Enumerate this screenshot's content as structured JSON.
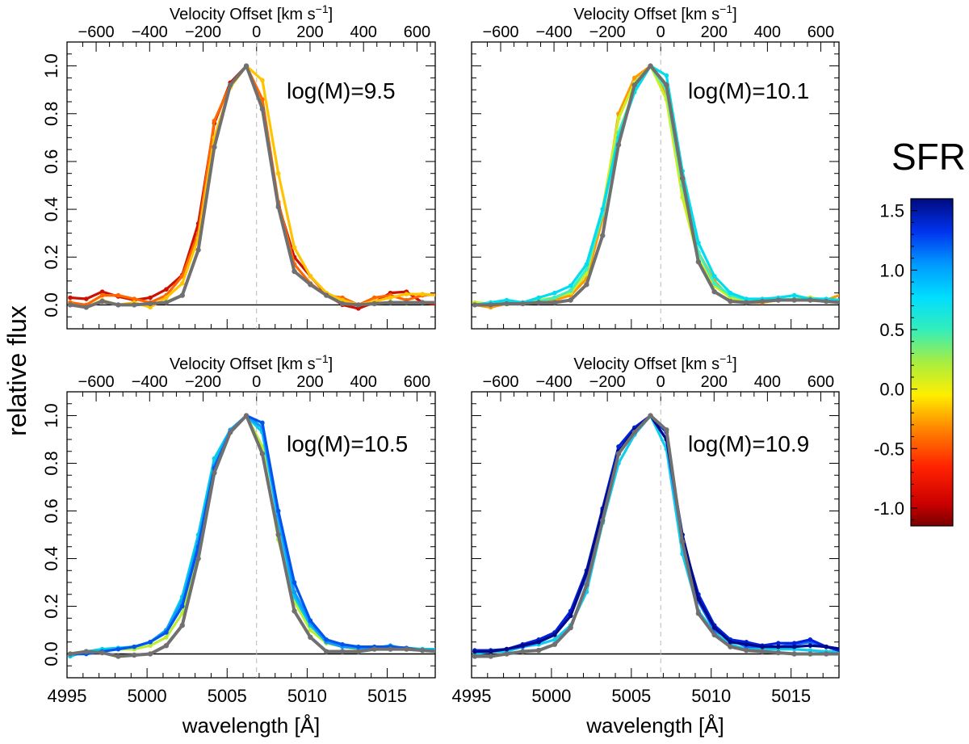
{
  "chart_data": {
    "type": "line",
    "figure": {
      "ylabel": "relative flux",
      "xlabel": "wavelength [Å]",
      "top_xlabel_main": "Velocity Offset [km s",
      "top_xlabel_sup": "−1",
      "top_xlabel_end": "]",
      "colorbar_title": "SFR",
      "colorbar_range": [
        -1.15,
        1.6
      ],
      "colorbar_ticks": [
        -1.0,
        -0.5,
        0.0,
        0.5,
        1.0,
        1.5
      ],
      "colorbar_tick_labels": [
        "-1.0",
        "-0.5",
        "0.0",
        "0.5",
        "1.0",
        "1.5"
      ]
    },
    "axes": {
      "xlim": [
        4995,
        5018
      ],
      "ylim": [
        -0.1,
        1.1
      ],
      "xticks": [
        4995,
        5000,
        5005,
        5010,
        5015
      ],
      "yticks": [
        0.0,
        0.2,
        0.4,
        0.6,
        0.8,
        1.0
      ],
      "ytick_labels": [
        "0.0",
        "0.2",
        "0.4",
        "0.6",
        "0.8",
        "1.0"
      ],
      "rest_wavelength": 5006.84,
      "top_ticks_kms": [
        -600,
        -400,
        -200,
        0,
        200,
        400,
        600
      ],
      "zero_line": 0.0
    },
    "x": [
      4995.2,
      4996.2,
      4997.2,
      4998.2,
      4999.2,
      5000.2,
      5001.2,
      5002.2,
      5003.2,
      5004.2,
      5005.2,
      5006.2,
      5007.2,
      5008.2,
      5009.2,
      5010.2,
      5011.2,
      5012.2,
      5013.2,
      5014.2,
      5015.2,
      5016.2,
      5017.2,
      5018.2
    ],
    "panels": [
      {
        "label": "log(M)=9.5",
        "series": [
          {
            "name": "SFR -1.0",
            "color": "#cc1100",
            "values": [
              0.03,
              0.025,
              0.055,
              0.035,
              0.02,
              0.03,
              0.065,
              0.125,
              0.34,
              0.76,
              0.93,
              1.0,
              0.82,
              0.42,
              0.2,
              0.12,
              0.045,
              0.0,
              -0.015,
              0.01,
              0.05,
              0.055,
              0.01,
              0.0
            ]
          },
          {
            "name": "SFR -0.5",
            "color": "#ff6600",
            "values": [
              0.01,
              0.0,
              0.04,
              0.04,
              0.025,
              0.01,
              0.04,
              0.12,
              0.3,
              0.77,
              0.92,
              1.0,
              0.86,
              0.43,
              0.17,
              0.09,
              0.04,
              0.03,
              0.0,
              0.03,
              0.04,
              0.02,
              0.04,
              0.045
            ]
          },
          {
            "name": "SFR -0.2",
            "color": "#ffc400",
            "values": [
              0.0,
              -0.01,
              0.02,
              0.0,
              0.01,
              -0.01,
              0.03,
              0.09,
              0.28,
              0.7,
              0.91,
              1.0,
              0.94,
              0.55,
              0.24,
              0.12,
              0.05,
              0.02,
              0.0,
              0.015,
              0.03,
              0.045,
              0.045,
              0.04
            ]
          },
          {
            "name": "average",
            "color": "#707070",
            "values": [
              0.0,
              -0.01,
              0.015,
              0.0,
              0.0,
              0.005,
              0.01,
              0.04,
              0.23,
              0.66,
              0.92,
              1.0,
              0.82,
              0.41,
              0.14,
              0.085,
              0.04,
              0.005,
              0.0,
              0.005,
              0.01,
              0.01,
              0.01,
              0.01
            ]
          }
        ]
      },
      {
        "label": "log(M)=10.1",
        "series": [
          {
            "name": "SFR -0.3",
            "color": "#ff9900",
            "values": [
              0.0,
              -0.01,
              0.005,
              0.005,
              0.01,
              0.02,
              0.04,
              0.11,
              0.36,
              0.8,
              0.95,
              1.0,
              0.88,
              0.48,
              0.22,
              0.1,
              0.03,
              0.01,
              0.01,
              0.02,
              0.02,
              0.03,
              0.02,
              0.045
            ]
          },
          {
            "name": "SFR 0.0",
            "color": "#ccee22",
            "values": [
              0.01,
              0.005,
              0.015,
              0.01,
              0.02,
              0.03,
              0.05,
              0.13,
              0.4,
              0.78,
              0.93,
              1.0,
              0.86,
              0.45,
              0.19,
              0.08,
              0.03,
              0.015,
              0.015,
              0.02,
              0.025,
              0.03,
              0.02,
              0.02
            ]
          },
          {
            "name": "SFR 0.3",
            "color": "#44eebb",
            "values": [
              0.0,
              0.0,
              0.01,
              0.01,
              0.015,
              0.03,
              0.06,
              0.15,
              0.38,
              0.72,
              0.9,
              1.0,
              0.9,
              0.5,
              0.22,
              0.09,
              0.04,
              0.02,
              0.015,
              0.02,
              0.025,
              0.02,
              0.02,
              0.02
            ]
          },
          {
            "name": "SFR 0.6",
            "color": "#00ddee",
            "values": [
              0.0,
              0.01,
              0.02,
              0.01,
              0.03,
              0.05,
              0.08,
              0.17,
              0.4,
              0.7,
              0.89,
              1.0,
              0.96,
              0.56,
              0.26,
              0.12,
              0.05,
              0.025,
              0.025,
              0.03,
              0.04,
              0.025,
              0.025,
              0.02
            ]
          },
          {
            "name": "average",
            "color": "#707070",
            "values": [
              0.0,
              0.0,
              0.005,
              0.005,
              0.01,
              0.01,
              0.02,
              0.085,
              0.29,
              0.67,
              0.92,
              1.0,
              0.92,
              0.53,
              0.18,
              0.055,
              0.015,
              0.01,
              0.015,
              0.02,
              0.02,
              0.02,
              0.015,
              0.01
            ]
          }
        ]
      },
      {
        "label": "log(M)=10.5",
        "series": [
          {
            "name": "SFR 0.2",
            "color": "#bbee33",
            "values": [
              0.0,
              0.01,
              0.01,
              0.02,
              0.02,
              0.035,
              0.07,
              0.17,
              0.44,
              0.8,
              0.93,
              1.0,
              0.87,
              0.48,
              0.22,
              0.1,
              0.045,
              0.03,
              0.02,
              0.03,
              0.025,
              0.02,
              0.02,
              0.015
            ]
          },
          {
            "name": "SFR 0.5",
            "color": "#00ccee",
            "values": [
              -0.01,
              0.01,
              0.02,
              0.025,
              0.03,
              0.05,
              0.1,
              0.24,
              0.5,
              0.82,
              0.94,
              1.0,
              0.93,
              0.56,
              0.24,
              0.12,
              0.05,
              0.035,
              0.025,
              0.02,
              0.03,
              0.025,
              0.02,
              0.02
            ]
          },
          {
            "name": "SFR 0.8",
            "color": "#1199ff",
            "values": [
              0.0,
              0.0,
              0.01,
              0.02,
              0.03,
              0.05,
              0.1,
              0.22,
              0.47,
              0.79,
              0.94,
              1.0,
              0.95,
              0.58,
              0.26,
              0.13,
              0.05,
              0.03,
              0.025,
              0.025,
              0.035,
              0.02,
              0.015,
              0.015
            ]
          },
          {
            "name": "SFR 1.1",
            "color": "#0055ee",
            "values": [
              0.0,
              0.0,
              0.01,
              0.02,
              0.03,
              0.05,
              0.09,
              0.2,
              0.45,
              0.78,
              0.93,
              1.0,
              0.97,
              0.6,
              0.3,
              0.14,
              0.06,
              0.04,
              0.03,
              0.03,
              0.03,
              0.025,
              0.015,
              0.01
            ]
          },
          {
            "name": "average",
            "color": "#707070",
            "values": [
              0.0,
              0.01,
              0.005,
              -0.01,
              -0.005,
              0.0,
              0.035,
              0.12,
              0.4,
              0.76,
              0.93,
              1.0,
              0.84,
              0.5,
              0.18,
              0.07,
              0.01,
              0.01,
              0.01,
              0.02,
              0.02,
              0.02,
              0.015,
              0.01
            ]
          }
        ]
      },
      {
        "label": "log(M)=10.9",
        "series": [
          {
            "name": "SFR 0.6",
            "color": "#11ccee",
            "values": [
              0.0,
              0.01,
              0.01,
              0.03,
              0.04,
              0.06,
              0.12,
              0.26,
              0.55,
              0.8,
              0.92,
              1.0,
              0.86,
              0.42,
              0.18,
              0.09,
              0.04,
              0.02,
              0.02,
              0.02,
              0.02,
              0.015,
              0.01,
              0.01
            ]
          },
          {
            "name": "SFR 0.9",
            "color": "#1166ff",
            "values": [
              0.01,
              0.01,
              0.02,
              0.03,
              0.05,
              0.08,
              0.16,
              0.33,
              0.6,
              0.84,
              0.93,
              1.0,
              0.9,
              0.47,
              0.22,
              0.1,
              0.06,
              0.03,
              0.03,
              0.03,
              0.04,
              0.05,
              0.03,
              0.02
            ]
          },
          {
            "name": "SFR 1.2",
            "color": "#0022dd",
            "values": [
              0.015,
              0.015,
              0.02,
              0.04,
              0.06,
              0.09,
              0.18,
              0.35,
              0.61,
              0.87,
              0.95,
              1.0,
              0.93,
              0.48,
              0.25,
              0.12,
              0.06,
              0.05,
              0.035,
              0.045,
              0.045,
              0.06,
              0.03,
              0.01
            ]
          },
          {
            "name": "SFR 1.5",
            "color": "#000a88",
            "values": [
              0.01,
              0.01,
              0.02,
              0.035,
              0.05,
              0.08,
              0.16,
              0.34,
              0.6,
              0.85,
              0.94,
              1.0,
              0.9,
              0.5,
              0.23,
              0.11,
              0.05,
              0.04,
              0.03,
              0.03,
              0.03,
              0.035,
              0.03,
              0.02
            ]
          },
          {
            "name": "average",
            "color": "#707070",
            "values": [
              -0.01,
              -0.01,
              0.0,
              0.01,
              0.015,
              0.04,
              0.11,
              0.29,
              0.56,
              0.84,
              0.93,
              1.0,
              0.94,
              0.47,
              0.17,
              0.08,
              0.03,
              0.015,
              0.01,
              0.005,
              0.0,
              0.0,
              0.0,
              0.0
            ]
          }
        ]
      }
    ]
  }
}
